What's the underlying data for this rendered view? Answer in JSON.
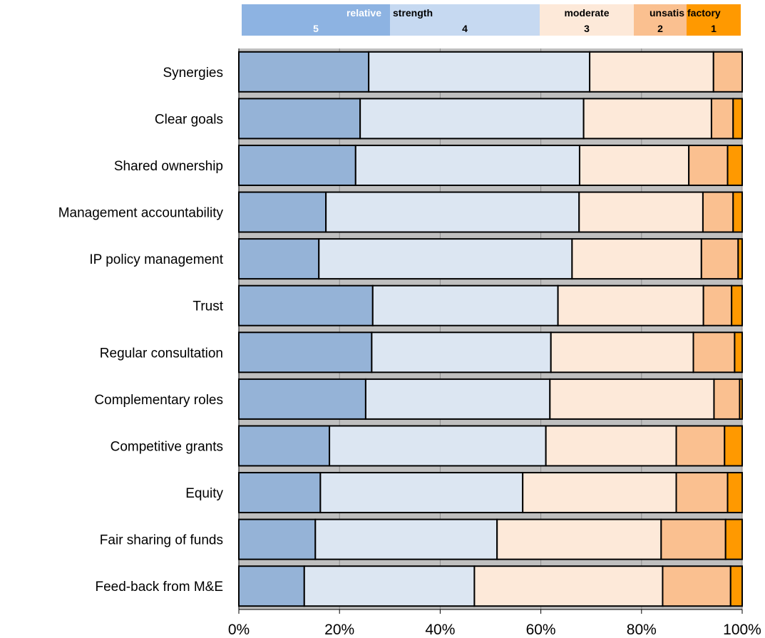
{
  "chart_data": {
    "type": "bar",
    "orientation": "horizontal",
    "stacked": true,
    "normalized_percent": true,
    "legend": {
      "placement": "top",
      "segments": [
        {
          "text": "relative",
          "score": "5"
        },
        {
          "text": "strength",
          "score": "4"
        },
        {
          "text": "moderate",
          "score": "3"
        },
        {
          "text": "unsatis",
          "score": "2"
        },
        {
          "text": "factory",
          "score": "1"
        }
      ]
    },
    "colors": [
      "#95b3d7",
      "#dce6f2",
      "#fde9d9",
      "#fac090",
      "#ff9900"
    ],
    "grid_color": "#bfbfbf",
    "categories": [
      "Synergies",
      "Clear goals",
      "Shared ownership",
      "Management accountability",
      "IP policy management",
      "Trust",
      "Regular consultation",
      "Complementary roles",
      "Competitive grants",
      "Equity",
      "Fair sharing of funds",
      "Feed-back from M&E"
    ],
    "series": [
      {
        "name": "5",
        "values": [
          25.8,
          24.1,
          23.2,
          17.3,
          15.9,
          26.6,
          26.4,
          25.2,
          18.0,
          16.2,
          15.2,
          13.0
        ]
      },
      {
        "name": "4",
        "values": [
          43.9,
          44.4,
          44.5,
          50.3,
          50.3,
          36.8,
          35.6,
          36.6,
          43.0,
          40.2,
          36.1,
          33.8
        ]
      },
      {
        "name": "3",
        "values": [
          24.6,
          25.4,
          21.7,
          24.6,
          25.7,
          28.9,
          28.3,
          32.6,
          25.9,
          30.5,
          32.6,
          37.4
        ]
      },
      {
        "name": "2",
        "values": [
          5.7,
          4.3,
          7.7,
          6.0,
          7.3,
          5.6,
          8.2,
          5.1,
          9.6,
          10.2,
          12.8,
          13.5
        ]
      },
      {
        "name": "1",
        "values": [
          0.0,
          1.8,
          2.9,
          1.8,
          0.8,
          2.1,
          1.5,
          0.5,
          3.5,
          2.9,
          3.3,
          2.3
        ]
      }
    ],
    "xlim": [
      0,
      100
    ],
    "xticks": [
      "0%",
      "20%",
      "40%",
      "60%",
      "80%",
      "100%"
    ],
    "grid": true
  }
}
